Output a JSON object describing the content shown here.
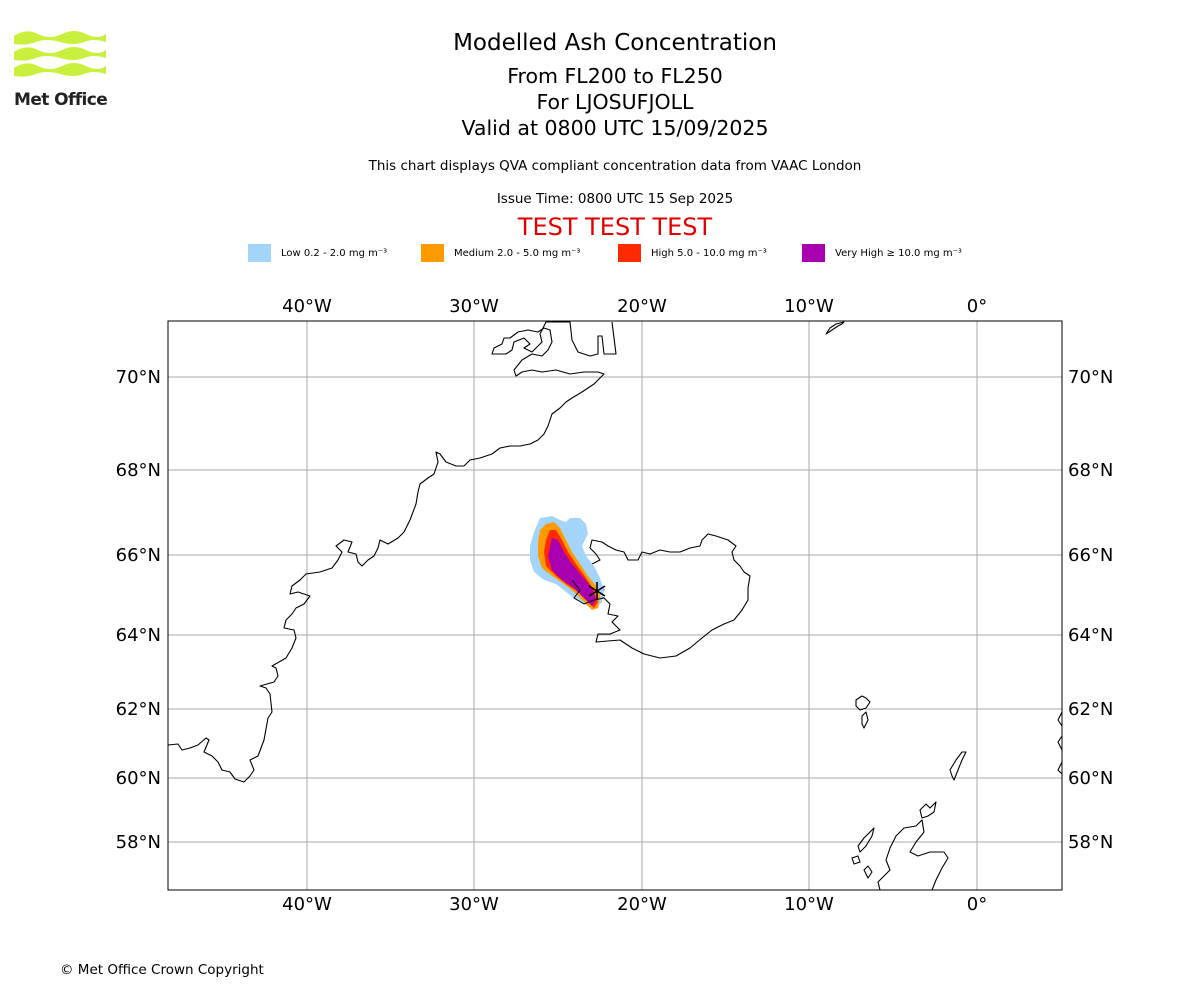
{
  "logo": {
    "text": "Met Office",
    "color": "#c8f03c"
  },
  "header": {
    "title": "Modelled Ash Concentration",
    "levels": "From FL200 to FL250",
    "volcano": "For LJOSUFJOLL",
    "valid": "Valid at 0800 UTC 15/09/2025",
    "description": "This chart displays QVA compliant concentration data from VAAC London",
    "issue_time": "Issue Time: 0800 UTC 15 Sep 2025",
    "test_banner": "TEST TEST TEST",
    "test_banner_color": "#e00000"
  },
  "legend": {
    "items": [
      {
        "label": "Low 0.2 - 2.0 mg m⁻³",
        "color": "#a3d4fa"
      },
      {
        "label": "Medium 2.0 - 5.0 mg m⁻³",
        "color": "#ff9a00"
      },
      {
        "label": "High 5.0 - 10.0 mg m⁻³",
        "color": "#ff2a00"
      },
      {
        "label": "Very High  ≥  10.0 mg m⁻³",
        "color": "#a800b0"
      }
    ]
  },
  "map": {
    "lon_labels": [
      "40°W",
      "30°W",
      "20°W",
      "10°W",
      "0°"
    ],
    "lat_labels": [
      "70°N",
      "68°N",
      "66°N",
      "64°N",
      "62°N",
      "60°N",
      "58°N"
    ],
    "gridline_color": "#aaaaaa",
    "volcano_marker": "asterisk-icon"
  },
  "footer": {
    "copyright": "© Met Office Crown Copyright"
  }
}
